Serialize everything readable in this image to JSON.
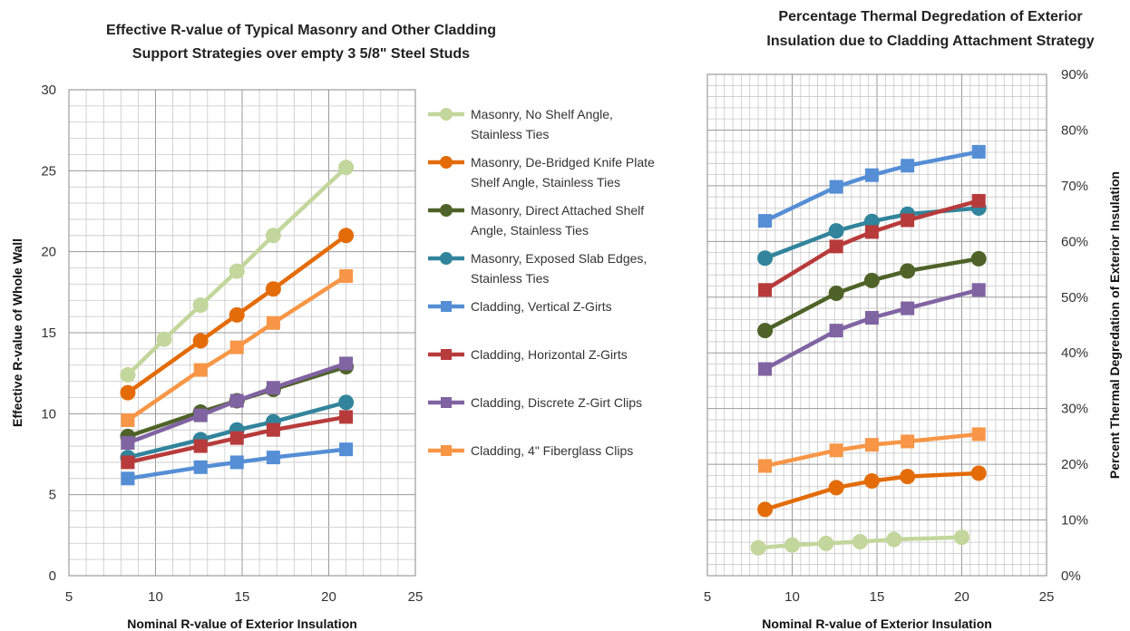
{
  "chart_data": [
    {
      "type": "line",
      "title_lines": [
        "Effective R-value of Typical Masonry and Other Cladding",
        "Support Strategies over empty 3 5/8\" Steel Studs"
      ],
      "xlabel": "Nominal R-value of Exterior Insulation",
      "ylabel": "Effective R-value of Whole Wall",
      "xlim": [
        5,
        25
      ],
      "ylim": [
        0,
        30
      ],
      "xticks": [
        "5",
        "10",
        "15",
        "20",
        "25"
      ],
      "yticks": [
        "0",
        "5",
        "10",
        "15",
        "20",
        "25",
        "30"
      ],
      "grid": "on",
      "legend_position": "right",
      "series": [
        {
          "name": "Masonry, No Shelf Angle, Stainless Ties",
          "legend_lines": [
            "Masonry, No Shelf Angle,",
            "Stainless Ties"
          ],
          "marker": "circle",
          "color": "#c3d69b",
          "points": [
            [
              8.4,
              12.4
            ],
            [
              10.5,
              14.6
            ],
            [
              12.6,
              16.7
            ],
            [
              14.7,
              18.8
            ],
            [
              16.8,
              21.0
            ],
            [
              21.0,
              25.2
            ]
          ]
        },
        {
          "name": "Masonry, De-Bridged Knife Plate Shelf Angle, Stainless Ties",
          "legend_lines": [
            "Masonry, De-Bridged Knife Plate",
            "Shelf Angle, Stainless Ties"
          ],
          "marker": "circle",
          "color": "#e36c09",
          "points": [
            [
              8.4,
              11.3
            ],
            [
              12.6,
              14.5
            ],
            [
              14.7,
              16.1
            ],
            [
              16.8,
              17.7
            ],
            [
              21.0,
              21.0
            ]
          ]
        },
        {
          "name": "Masonry, Direct Attached Shelf Angle, Stainless Ties",
          "legend_lines": [
            "Masonry, Direct Attached Shelf",
            "Angle, Stainless Ties"
          ],
          "marker": "circle",
          "color": "#4f6228",
          "points": [
            [
              8.4,
              8.6
            ],
            [
              12.6,
              10.1
            ],
            [
              14.7,
              10.8
            ],
            [
              16.8,
              11.5
            ],
            [
              21.0,
              12.9
            ]
          ]
        },
        {
          "name": "Masonry, Exposed Slab Edges, Stainless Ties",
          "legend_lines": [
            "Masonry, Exposed Slab Edges,",
            "Stainless Ties"
          ],
          "marker": "circle",
          "color": "#31849b",
          "points": [
            [
              8.4,
              7.3
            ],
            [
              12.6,
              8.4
            ],
            [
              14.7,
              9.0
            ],
            [
              16.8,
              9.5
            ],
            [
              21.0,
              10.7
            ]
          ]
        },
        {
          "name": "Cladding, Vertical Z-Girts",
          "legend_lines": [
            "Cladding, Vertical Z-Girts"
          ],
          "marker": "square",
          "color": "#558ed5",
          "points": [
            [
              8.4,
              6.0
            ],
            [
              12.6,
              6.7
            ],
            [
              14.7,
              7.0
            ],
            [
              16.8,
              7.3
            ],
            [
              21.0,
              7.8
            ]
          ]
        },
        {
          "name": "Cladding, Horizontal Z-Girts",
          "legend_lines": [
            "Cladding, Horizontal Z-Girts"
          ],
          "marker": "square",
          "color": "#b83b3b",
          "points": [
            [
              8.4,
              7.0
            ],
            [
              12.6,
              8.0
            ],
            [
              14.7,
              8.5
            ],
            [
              16.8,
              9.0
            ],
            [
              21.0,
              9.8
            ]
          ]
        },
        {
          "name": "Cladding, Discrete Z-Girt Clips",
          "legend_lines": [
            "Cladding, Discrete Z-Girt Clips"
          ],
          "marker": "square",
          "color": "#8064a2",
          "points": [
            [
              8.4,
              8.2
            ],
            [
              12.6,
              9.9
            ],
            [
              14.7,
              10.8
            ],
            [
              16.8,
              11.6
            ],
            [
              21.0,
              13.1
            ]
          ]
        },
        {
          "name": "Cladding, 4\" Fiberglass Clips",
          "legend_lines": [
            "Cladding, 4\" Fiberglass Clips"
          ],
          "marker": "square",
          "color": "#f79646",
          "points": [
            [
              8.4,
              9.6
            ],
            [
              12.6,
              12.7
            ],
            [
              14.7,
              14.1
            ],
            [
              16.8,
              15.6
            ],
            [
              21.0,
              18.5
            ]
          ]
        }
      ]
    },
    {
      "type": "line",
      "title_lines": [
        "Percentage Thermal Degredation of Exterior",
        "Insulation due to Cladding Attachment Strategy"
      ],
      "xlabel": "Nominal R-value of Exterior Insulation",
      "ylabel": "Percent Thermal Degredation of Exterior Insulation",
      "xlim": [
        5,
        25
      ],
      "ylim": [
        0,
        90
      ],
      "y_axis_side": "right",
      "xticks": [
        "5",
        "10",
        "15",
        "20",
        "25"
      ],
      "yticks": [
        "0%",
        "10%",
        "20%",
        "30%",
        "40%",
        "50%",
        "60%",
        "70%",
        "80%",
        "90%"
      ],
      "grid": "on",
      "series": [
        {
          "marker": "circle",
          "color": "#c3d69b",
          "points": [
            [
              8.0,
              5.0
            ],
            [
              10.0,
              5.5
            ],
            [
              12.0,
              5.8
            ],
            [
              14.0,
              6.1
            ],
            [
              16.0,
              6.5
            ],
            [
              20.0,
              6.9
            ]
          ]
        },
        {
          "marker": "circle",
          "color": "#e36c09",
          "points": [
            [
              8.4,
              11.9
            ],
            [
              12.6,
              15.8
            ],
            [
              14.7,
              17.0
            ],
            [
              16.8,
              17.8
            ],
            [
              21.0,
              18.4
            ]
          ]
        },
        {
          "marker": "circle",
          "color": "#4f6228",
          "points": [
            [
              8.4,
              44.0
            ],
            [
              12.6,
              50.7
            ],
            [
              14.7,
              53.0
            ],
            [
              16.8,
              54.7
            ],
            [
              21.0,
              56.9
            ]
          ]
        },
        {
          "marker": "circle",
          "color": "#31849b",
          "points": [
            [
              8.4,
              57.0
            ],
            [
              12.6,
              61.9
            ],
            [
              14.7,
              63.6
            ],
            [
              16.8,
              64.9
            ],
            [
              21.0,
              66.0
            ]
          ]
        },
        {
          "marker": "square",
          "color": "#558ed5",
          "points": [
            [
              8.4,
              63.7
            ],
            [
              12.6,
              69.8
            ],
            [
              14.7,
              71.9
            ],
            [
              16.8,
              73.6
            ],
            [
              21.0,
              76.1
            ]
          ]
        },
        {
          "marker": "square",
          "color": "#b83b3b",
          "points": [
            [
              8.4,
              51.3
            ],
            [
              12.6,
              59.1
            ],
            [
              14.7,
              61.7
            ],
            [
              16.8,
              63.8
            ],
            [
              21.0,
              67.3
            ]
          ]
        },
        {
          "marker": "square",
          "color": "#8064a2",
          "points": [
            [
              8.4,
              37.1
            ],
            [
              12.6,
              44.0
            ],
            [
              14.7,
              46.3
            ],
            [
              16.8,
              48.0
            ],
            [
              21.0,
              51.3
            ]
          ]
        },
        {
          "marker": "square",
          "color": "#f79646",
          "points": [
            [
              8.4,
              19.7
            ],
            [
              12.6,
              22.5
            ],
            [
              14.7,
              23.5
            ],
            [
              16.8,
              24.1
            ],
            [
              21.0,
              25.4
            ]
          ]
        }
      ]
    }
  ]
}
